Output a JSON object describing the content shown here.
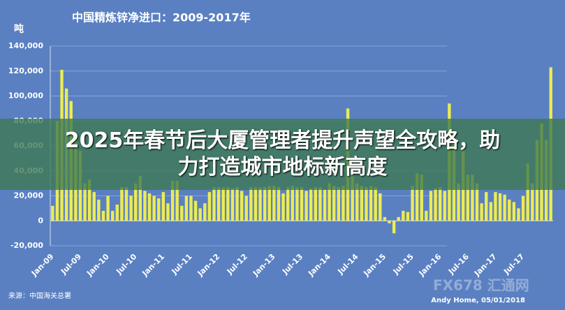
{
  "chart_data": {
    "type": "bar",
    "title": "中国精炼锌净进口：2009-2017年",
    "y_label": "吨",
    "source": "来源：中国海关总署",
    "credit": "Andy Home, 05/01/2018",
    "watermark": "FX678 汇通网",
    "categories": [
      "Jan-09",
      null,
      null,
      null,
      null,
      null,
      "Jul-09",
      null,
      null,
      null,
      null,
      null,
      "Jan-10",
      null,
      null,
      null,
      null,
      null,
      "Jul-10",
      null,
      null,
      null,
      null,
      null,
      "Jan-11",
      null,
      null,
      null,
      null,
      null,
      "Jul-11",
      null,
      null,
      null,
      null,
      null,
      "Jan-12",
      null,
      null,
      null,
      null,
      null,
      "Jul-12",
      null,
      null,
      null,
      null,
      null,
      "Jan-13",
      null,
      null,
      null,
      null,
      null,
      "Jul-13",
      null,
      null,
      null,
      null,
      null,
      "Jan-14",
      null,
      null,
      null,
      null,
      null,
      "Jul-14",
      null,
      null,
      null,
      null,
      null,
      "Jan-15",
      null,
      null,
      null,
      null,
      null,
      "Jul-15",
      null,
      null,
      null,
      null,
      null,
      "Jan-16",
      null,
      null,
      null,
      null,
      null,
      "Jul-16",
      null,
      null,
      null,
      null,
      null,
      "Jan-17",
      null,
      null,
      null,
      null,
      null,
      "Jul-17",
      null,
      null,
      null,
      null,
      null,
      null
    ],
    "values": [
      12000,
      80000,
      121000,
      106000,
      96000,
      70000,
      56000,
      30000,
      33000,
      23000,
      17000,
      8000,
      20000,
      8000,
      13000,
      27000,
      27000,
      20000,
      30000,
      36000,
      24000,
      22000,
      20000,
      18000,
      23000,
      14000,
      32000,
      32000,
      12000,
      20000,
      20000,
      16000,
      10000,
      14000,
      23000,
      27000,
      27000,
      27000,
      27000,
      26000,
      27000,
      24000,
      20000,
      27000,
      27000,
      27000,
      27000,
      28000,
      28000,
      27000,
      22000,
      27000,
      28000,
      27000,
      27000,
      24000,
      26000,
      27000,
      27000,
      25000,
      30000,
      28000,
      27000,
      28000,
      90000,
      37000,
      30000,
      28000,
      27000,
      28000,
      27000,
      22000,
      3000,
      -2000,
      -10000,
      3000,
      8000,
      7000,
      28000,
      38000,
      37000,
      8000,
      24000,
      26000,
      27000,
      24000,
      94000,
      70000,
      30000,
      58000,
      37000,
      37000,
      30000,
      14000,
      23000,
      15000,
      23000,
      22000,
      21000,
      17000,
      15000,
      10000,
      20000,
      46000,
      30000,
      65000,
      78000,
      65000,
      123000
    ],
    "color": "#ecec52",
    "ylim": [
      -20000,
      140000
    ],
    "yticks": [
      {
        "value": -20000,
        "label": "-20,000"
      },
      0,
      {
        "value": 20000,
        "label": "20,000"
      },
      {
        "value": 40000,
        "label": "40,000"
      },
      {
        "value": 60000,
        "label": "60,000"
      },
      {
        "value": 80000,
        "label": "80,000"
      },
      {
        "value": 100000,
        "label": "100,000"
      },
      {
        "value": 120000,
        "label": "120,000"
      },
      {
        "value": 140000,
        "label": "140,000"
      }
    ],
    "grid": true
  },
  "banner": {
    "lines": [
      "2025年春节后大厦管理者提升声望全攻略，助",
      "力打造城市地标新高度"
    ]
  }
}
